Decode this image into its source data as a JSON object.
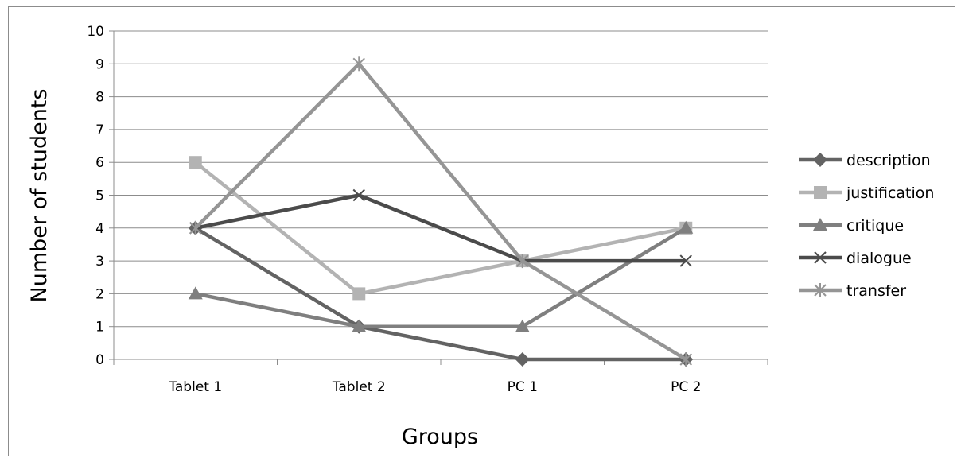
{
  "chart_data": {
    "type": "line",
    "title": "",
    "xlabel": "Groups",
    "ylabel": "Number of students",
    "categories": [
      "Tablet 1",
      "Tablet 2",
      "PC 1",
      "PC 2"
    ],
    "ylim": [
      0,
      10
    ],
    "yticks": [
      0,
      1,
      2,
      3,
      4,
      5,
      6,
      7,
      8,
      9,
      10
    ],
    "grid": true,
    "legend_position": "right",
    "series": [
      {
        "name": "description",
        "values": [
          4,
          1,
          0,
          0
        ],
        "color": "#636363",
        "marker": "diamond"
      },
      {
        "name": "justification",
        "values": [
          6,
          2,
          3,
          4
        ],
        "color": "#b3b3b3",
        "marker": "square"
      },
      {
        "name": "critique",
        "values": [
          2,
          1,
          1,
          4
        ],
        "color": "#7f7f7f",
        "marker": "triangle"
      },
      {
        "name": "dialogue",
        "values": [
          4,
          5,
          3,
          3
        ],
        "color": "#4b4b4b",
        "marker": "x"
      },
      {
        "name": "transfer",
        "values": [
          4,
          9,
          3,
          0
        ],
        "color": "#959595",
        "marker": "star"
      }
    ]
  }
}
